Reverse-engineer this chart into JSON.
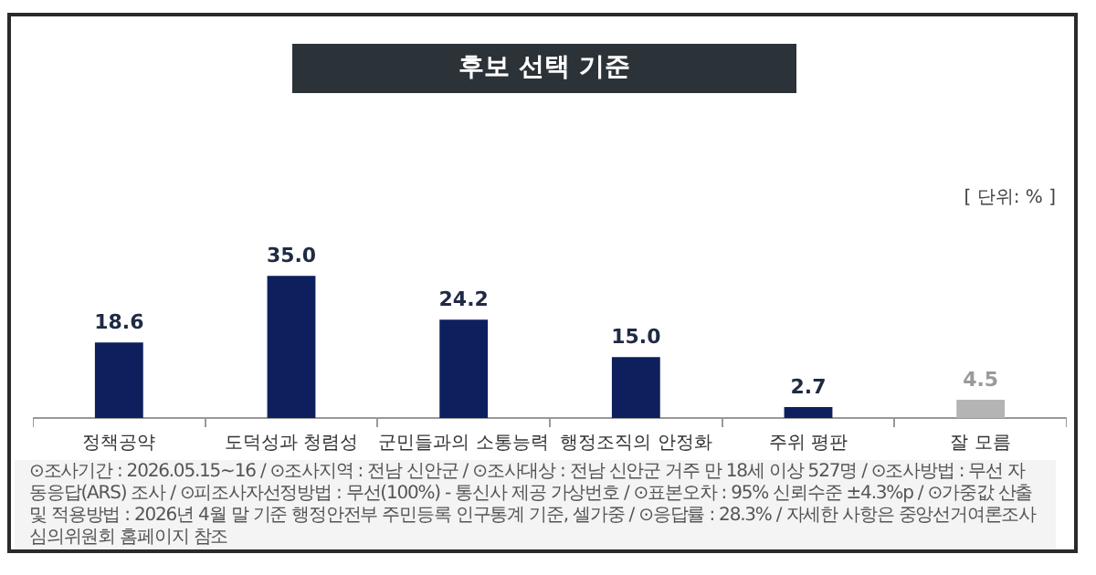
{
  "chart_data": {
    "type": "bar",
    "title": "후보 선택 기준",
    "categories": [
      "정책공약",
      "도덕성과 청렴성",
      "군민들과의 소통능력",
      "행정조직의 안정화",
      "주위 평판",
      "잘 모름"
    ],
    "values": [
      18.6,
      35.0,
      24.2,
      15.0,
      2.7,
      4.5
    ],
    "colors": [
      "#0d1f5c",
      "#0d1f5c",
      "#0d1f5c",
      "#0d1f5c",
      "#0d1f5c",
      "#b4b4b4"
    ],
    "value_labels": [
      "18.6",
      "35.0",
      "24.2",
      "15.0",
      "2.7",
      "4.5"
    ],
    "grid": false,
    "legend": false,
    "annotations": [
      "[ 단위: % ]",
      "⊙조사기간 : 2026.05.15~16 / ⊙조사지역 : 전남 신안군 / ⊙조사대상 : 전남 신안군 거주 만 18세 이상 527명 / ⊙조사방법 : 무선 자동응답(ARS) 조사 / ⊙피조사자선정방법 : 무선(100%) - 통신사 제공 가상번호 / ⊙표본오차 : 95% 신뢰수준 ±4.3%p / ⊙가중값 산출 및 적용방법 : 2026년 4월 말 기준 행정안전부 주민등록 인구통계 기준, 셀가중 / ⊙응답률 : 28.3% / 자세한 사항은 중앙선거여론조사심의위원회 홈페이지 참조"
    ]
  }
}
